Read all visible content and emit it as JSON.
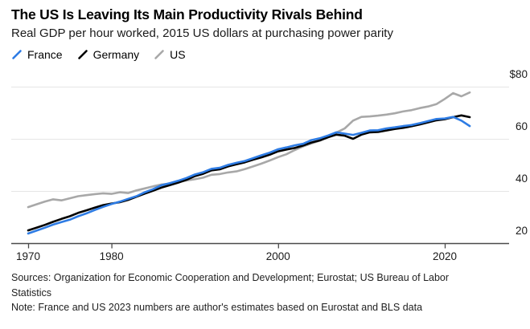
{
  "header": {
    "title": "The US Is Leaving Its Main Productivity Rivals Behind",
    "subtitle": "Real GDP per hour worked, 2015 US dollars at purchasing power parity"
  },
  "legend": {
    "items": [
      {
        "label": "France",
        "color": "#2e7ce4"
      },
      {
        "label": "Germany",
        "color": "#000000"
      },
      {
        "label": "US",
        "color": "#a8a8a8"
      }
    ]
  },
  "colors": {
    "grid": "#e5e5e5",
    "axis": "#4a4a4a",
    "tick_label": "#1a1a1a"
  },
  "chart_data": {
    "type": "line",
    "title": "The US Is Leaving Its Main Productivity Rivals Behind",
    "subtitle": "Real GDP per hour worked, 2015 US dollars at purchasing power parity",
    "unit": "2015 US dollars at purchasing power parity",
    "xlim": [
      1968,
      2025.5
    ],
    "ylim": [
      20,
      82
    ],
    "x_ticks": [
      1970,
      1980,
      2000,
      2020
    ],
    "y_ticks": [
      {
        "label": "$80",
        "value": 80
      },
      {
        "label": "60",
        "value": 60
      },
      {
        "label": "40",
        "value": 40
      },
      {
        "label": "20",
        "value": 20
      }
    ],
    "legend_position": "top-left",
    "grid": "horizontal",
    "x": [
      1970,
      1971,
      1972,
      1973,
      1974,
      1975,
      1976,
      1977,
      1978,
      1979,
      1980,
      1981,
      1982,
      1983,
      1984,
      1985,
      1986,
      1987,
      1988,
      1989,
      1990,
      1991,
      1992,
      1993,
      1994,
      1995,
      1996,
      1997,
      1998,
      1999,
      2000,
      2001,
      2002,
      2003,
      2004,
      2005,
      2006,
      2007,
      2008,
      2009,
      2010,
      2011,
      2012,
      2013,
      2014,
      2015,
      2016,
      2017,
      2018,
      2019,
      2020,
      2021,
      2022,
      2023
    ],
    "series": [
      {
        "name": "US",
        "color": "#a8a8a8",
        "values": [
          33.8,
          34.9,
          35.9,
          36.8,
          36.4,
          37.2,
          38.0,
          38.4,
          38.8,
          39.1,
          38.9,
          39.5,
          39.2,
          40.2,
          41.0,
          41.8,
          42.5,
          42.8,
          43.4,
          44.0,
          44.5,
          45.1,
          46.2,
          46.5,
          47.1,
          47.5,
          48.4,
          49.4,
          50.5,
          51.7,
          53.0,
          54.1,
          55.7,
          57.1,
          58.2,
          59.3,
          60.8,
          62.4,
          64.0,
          67.0,
          68.4,
          68.6,
          68.9,
          69.3,
          69.8,
          70.5,
          71.0,
          71.8,
          72.4,
          73.3,
          75.3,
          77.5,
          76.3,
          77.8
        ]
      },
      {
        "name": "Germany",
        "color": "#000000",
        "values": [
          24.9,
          25.9,
          27.0,
          28.2,
          29.3,
          30.3,
          31.6,
          32.6,
          33.6,
          34.6,
          35.2,
          35.7,
          36.6,
          37.8,
          39.0,
          40.1,
          41.3,
          42.2,
          43.2,
          44.3,
          45.7,
          46.6,
          47.9,
          48.3,
          49.4,
          50.2,
          51.0,
          52.0,
          52.9,
          53.9,
          55.2,
          55.9,
          56.5,
          57.4,
          58.6,
          59.4,
          60.6,
          61.6,
          61.2,
          60.0,
          61.6,
          62.5,
          62.6,
          63.2,
          63.8,
          64.2,
          64.8,
          65.5,
          66.3,
          67.1,
          67.5,
          68.3,
          69.0,
          68.3
        ]
      },
      {
        "name": "France",
        "color": "#2e7ce4",
        "values": [
          23.7,
          24.8,
          25.9,
          27.1,
          28.1,
          29.0,
          30.3,
          31.4,
          32.7,
          33.9,
          35.0,
          35.9,
          37.0,
          38.0,
          39.5,
          40.7,
          42.2,
          43.0,
          43.9,
          45.0,
          46.3,
          47.2,
          48.5,
          48.9,
          50.0,
          50.8,
          51.5,
          52.6,
          53.7,
          54.7,
          56.0,
          56.7,
          57.5,
          58.1,
          59.5,
          60.2,
          61.3,
          62.5,
          62.0,
          61.5,
          62.3,
          63.2,
          63.3,
          64.0,
          64.4,
          64.9,
          65.3,
          66.0,
          66.8,
          67.6,
          67.8,
          68.4,
          67.0,
          64.9
        ]
      }
    ]
  },
  "footer": {
    "lines": [
      "Sources: Organization for Economic Cooperation and Development; Eurostat; US Bureau of Labor",
      "Statistics",
      "Note: France and US 2023 numbers are author's estimates based on Eurostat and BLS data"
    ]
  }
}
